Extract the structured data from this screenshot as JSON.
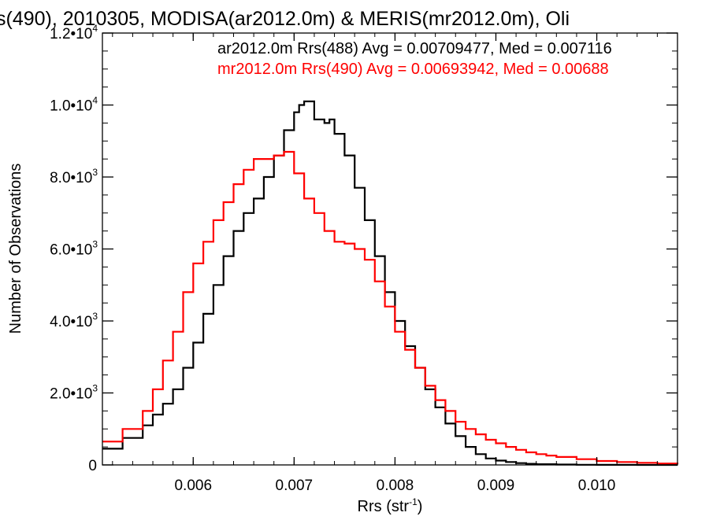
{
  "chart_data": {
    "type": "line",
    "title": "s(490), 2010305, MODISA(ar2012.0m) & MERIS(mr2012.0m), Oli",
    "xlabel": "Rrs (str",
    "xlabel_sup": "-1",
    "xlabel_end": ")",
    "ylabel": "Number of Observations",
    "xlim": [
      0.0051,
      0.0108
    ],
    "ylim": [
      0,
      12000
    ],
    "x_ticks": [
      {
        "value": 0.006,
        "label": "0.006"
      },
      {
        "value": 0.007,
        "label": "0.007"
      },
      {
        "value": 0.008,
        "label": "0.008"
      },
      {
        "value": 0.009,
        "label": "0.009"
      },
      {
        "value": 0.01,
        "label": "0.010"
      }
    ],
    "y_ticks": [
      {
        "value": 0,
        "label": "0",
        "exp": ""
      },
      {
        "value": 2000,
        "label": "2.0•10",
        "exp": "3"
      },
      {
        "value": 4000,
        "label": "4.0•10",
        "exp": "3"
      },
      {
        "value": 6000,
        "label": "6.0•10",
        "exp": "3"
      },
      {
        "value": 8000,
        "label": "8.0•10",
        "exp": "3"
      },
      {
        "value": 10000,
        "label": "1.0•10",
        "exp": "4"
      },
      {
        "value": 12000,
        "label": "1.2•10",
        "exp": "4"
      }
    ],
    "legend_position": "top-right",
    "series": [
      {
        "name": "ar2012.0m Rrs(488) Avg = 0.00709477, Med = 0.007116",
        "color": "#000000",
        "x": [
          0.0051,
          0.0053,
          0.0055,
          0.0056,
          0.0057,
          0.0058,
          0.0059,
          0.006,
          0.0061,
          0.0062,
          0.0063,
          0.0064,
          0.0065,
          0.0066,
          0.0067,
          0.0068,
          0.0069,
          0.007,
          0.00705,
          0.0071,
          0.0072,
          0.0073,
          0.00735,
          0.0074,
          0.0075,
          0.0076,
          0.0077,
          0.0078,
          0.0079,
          0.008,
          0.0081,
          0.0082,
          0.0083,
          0.0084,
          0.0085,
          0.0086,
          0.0087,
          0.0088,
          0.0089,
          0.009,
          0.0091,
          0.0092,
          0.0093,
          0.0094,
          0.0096,
          0.0098,
          0.01,
          0.0102,
          0.0104,
          0.0106,
          0.0108
        ],
        "y": [
          450,
          750,
          1100,
          1400,
          1700,
          2100,
          2700,
          3400,
          4200,
          5000,
          5800,
          6500,
          7000,
          7400,
          8000,
          8600,
          9300,
          9800,
          10000,
          10100,
          9600,
          9500,
          9600,
          9200,
          8600,
          7700,
          6800,
          5800,
          4800,
          4000,
          3300,
          2700,
          2100,
          1600,
          1150,
          800,
          500,
          300,
          180,
          120,
          80,
          50,
          30,
          20,
          10,
          5,
          3,
          2,
          1,
          0,
          0
        ]
      },
      {
        "name": "mr2012.0m Rrs(490) Avg = 0.00693942, Med = 0.00688",
        "color": "#ff0000",
        "x": [
          0.0051,
          0.0053,
          0.0055,
          0.0056,
          0.0057,
          0.0058,
          0.0059,
          0.006,
          0.0061,
          0.0062,
          0.0063,
          0.0064,
          0.0065,
          0.0066,
          0.0067,
          0.0068,
          0.0069,
          0.007,
          0.0071,
          0.0072,
          0.0073,
          0.0074,
          0.0075,
          0.0076,
          0.0077,
          0.0078,
          0.0079,
          0.008,
          0.0081,
          0.0082,
          0.0083,
          0.0084,
          0.0085,
          0.0086,
          0.0087,
          0.0088,
          0.0089,
          0.009,
          0.0091,
          0.0092,
          0.0093,
          0.0094,
          0.0095,
          0.0096,
          0.0098,
          0.01,
          0.0102,
          0.0104,
          0.0106,
          0.0108
        ],
        "y": [
          650,
          1000,
          1500,
          2100,
          2900,
          3700,
          4800,
          5600,
          6200,
          6800,
          7300,
          7800,
          8200,
          8500,
          8500,
          8600,
          8700,
          8100,
          7400,
          7000,
          6500,
          6200,
          6150,
          6000,
          5700,
          5100,
          4400,
          3700,
          3200,
          2700,
          2200,
          1800,
          1500,
          1200,
          1000,
          850,
          700,
          600,
          500,
          420,
          350,
          300,
          260,
          220,
          160,
          110,
          80,
          60,
          40,
          20
        ]
      }
    ]
  }
}
